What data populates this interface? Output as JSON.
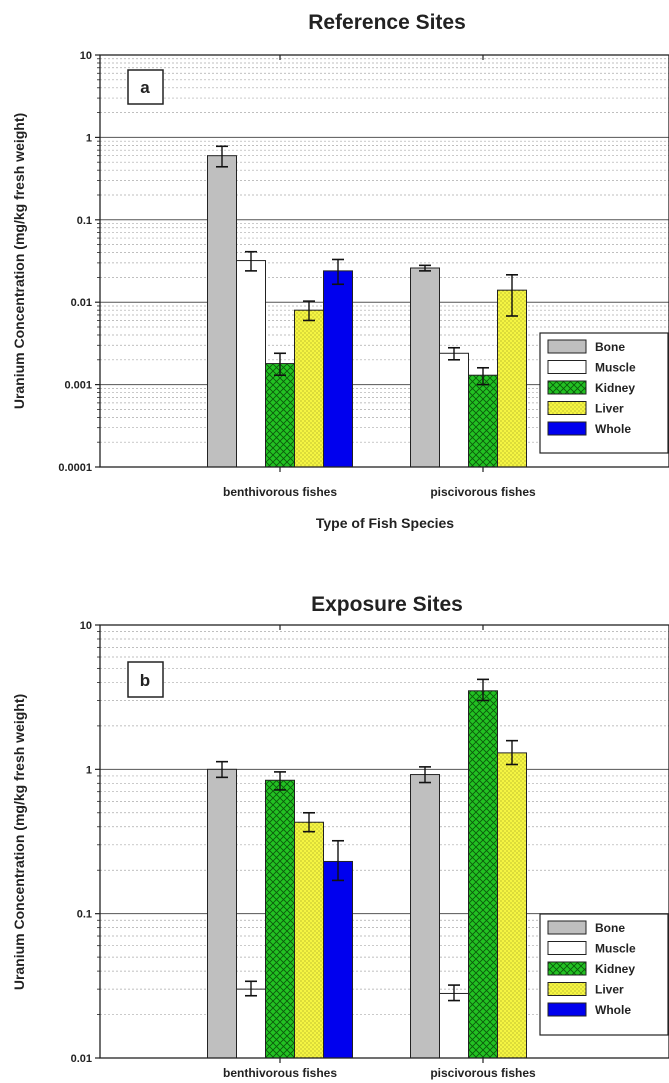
{
  "chart_data": [
    {
      "type": "bar",
      "panel_label": "a",
      "title": "Reference Sites",
      "xlabel": "Type of Fish Species",
      "ylabel": "Uranium Concentration (mg/kg fresh weight)",
      "yscale": "log",
      "ylim": [
        0.0001,
        10
      ],
      "yticks": [
        "0.0001",
        "0.001",
        "0.01",
        "0.1",
        "1",
        "10"
      ],
      "categories": [
        "benthivorous fishes",
        "piscivorous fishes"
      ],
      "series": [
        {
          "name": "Bone",
          "color": "#bfbfbf",
          "pattern": "solid",
          "values": [
            0.6,
            0.026
          ],
          "err_low": [
            0.44,
            0.024
          ],
          "err_high": [
            0.78,
            0.028
          ]
        },
        {
          "name": "Muscle",
          "color": "#ffffff",
          "pattern": "solid",
          "values": [
            0.032,
            0.0024
          ],
          "err_low": [
            0.024,
            0.002
          ],
          "err_high": [
            0.041,
            0.0028
          ]
        },
        {
          "name": "Kidney",
          "color": "#22c122",
          "pattern": "crosshatch",
          "values": [
            0.0018,
            0.0013
          ],
          "err_low": [
            0.0013,
            0.001
          ],
          "err_high": [
            0.0024,
            0.0016
          ]
        },
        {
          "name": "Liver",
          "color": "#f5f542",
          "pattern": "dots",
          "values": [
            0.008,
            0.014
          ],
          "err_low": [
            0.006,
            0.0068
          ],
          "err_high": [
            0.0103,
            0.0215
          ]
        },
        {
          "name": "Whole",
          "color": "#0000ee",
          "pattern": "solid",
          "values": [
            0.024,
            null
          ],
          "err_low": [
            0.0165,
            null
          ],
          "err_high": [
            0.033,
            null
          ]
        }
      ],
      "grid": true,
      "legend_position": "bottom-right"
    },
    {
      "type": "bar",
      "panel_label": "b",
      "title": "Exposure Sites",
      "xlabel": "",
      "ylabel": "Uranium Concentration (mg/kg fresh weight)",
      "yscale": "log",
      "ylim": [
        0.01,
        10
      ],
      "yticks": [
        "0.01",
        "0.1",
        "1",
        "10"
      ],
      "categories": [
        "benthivorous fishes",
        "piscivorous fishes"
      ],
      "series": [
        {
          "name": "Bone",
          "color": "#bfbfbf",
          "pattern": "solid",
          "values": [
            1.0,
            0.92
          ],
          "err_low": [
            0.88,
            0.81
          ],
          "err_high": [
            1.13,
            1.04
          ]
        },
        {
          "name": "Muscle",
          "color": "#ffffff",
          "pattern": "solid",
          "values": [
            0.03,
            0.028
          ],
          "err_low": [
            0.027,
            0.025
          ],
          "err_high": [
            0.034,
            0.032
          ]
        },
        {
          "name": "Kidney",
          "color": "#22c122",
          "pattern": "crosshatch",
          "values": [
            0.84,
            3.5
          ],
          "err_low": [
            0.72,
            3.0
          ],
          "err_high": [
            0.96,
            4.2
          ]
        },
        {
          "name": "Liver",
          "color": "#f5f542",
          "pattern": "dots",
          "values": [
            0.43,
            1.3
          ],
          "err_low": [
            0.37,
            1.08
          ],
          "err_high": [
            0.5,
            1.58
          ]
        },
        {
          "name": "Whole",
          "color": "#0000ee",
          "pattern": "solid",
          "values": [
            0.23,
            null
          ],
          "err_low": [
            0.17,
            null
          ],
          "err_high": [
            0.32,
            null
          ]
        }
      ],
      "grid": true,
      "legend_position": "bottom-right"
    }
  ]
}
